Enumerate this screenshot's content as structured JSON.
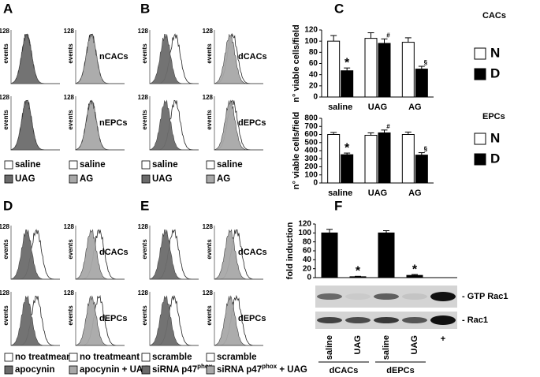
{
  "histogram_panels": [
    {
      "letter": "A",
      "ymax_label": "128",
      "ylabel": "events",
      "row_labels": [
        "nCACs",
        "nEPCs"
      ],
      "legend": [
        [
          {
            "text": "saline",
            "color": "#ffffff"
          },
          {
            "text": "UAG",
            "color": "#6b6b6b"
          }
        ],
        [
          {
            "text": "saline",
            "color": "#ffffff"
          },
          {
            "text": "AG",
            "color": "#a8a8a8"
          }
        ]
      ]
    },
    {
      "letter": "B",
      "ymax_label": "128",
      "ylabel": "events",
      "row_labels": [
        "dCACs",
        "dEPCs"
      ],
      "legend": [
        [
          {
            "text": "saline",
            "color": "#ffffff"
          },
          {
            "text": "UAG",
            "color": "#6b6b6b"
          }
        ],
        [
          {
            "text": "saline",
            "color": "#ffffff"
          },
          {
            "text": "AG",
            "color": "#a8a8a8"
          }
        ]
      ]
    },
    {
      "letter": "D",
      "ymax_label": "128",
      "ylabel": "events",
      "row_labels": [
        "dCACs",
        "dEPCs"
      ],
      "legend": [
        [
          {
            "text": "no treatmeant",
            "color": "#ffffff"
          },
          {
            "text": "apocynin",
            "color": "#6b6b6b"
          }
        ],
        [
          {
            "text": "no treatmeant",
            "color": "#ffffff"
          },
          {
            "text": "apocynin + UAG",
            "color": "#a8a8a8"
          }
        ]
      ]
    },
    {
      "letter": "E",
      "ymax_label": "128",
      "ylabel": "events",
      "row_labels": [
        "dCACs",
        "dEPCs"
      ],
      "legend": [
        [
          {
            "text": "scramble",
            "color": "#ffffff"
          },
          {
            "text": "siRNA p47",
            "sup": "phox",
            "color": "#6b6b6b"
          }
        ],
        [
          {
            "text": "scramble",
            "color": "#ffffff"
          },
          {
            "text": "siRNA p47",
            "sup": "phox",
            "suffix": " + UAG",
            "color": "#a8a8a8"
          }
        ]
      ]
    }
  ],
  "chart_data": [
    {
      "type": "bar",
      "panel": "C",
      "title": "CACs",
      "ylabel": "n° viable cells/field",
      "categories": [
        "saline",
        "UAG",
        "AG"
      ],
      "series": [
        {
          "name": "N",
          "color": "#ffffff",
          "values": [
            100,
            105,
            98
          ],
          "errors": [
            10,
            10,
            8
          ]
        },
        {
          "name": "D",
          "color": "#000000",
          "values": [
            47,
            96,
            50
          ],
          "errors": [
            5,
            8,
            5
          ],
          "annotations": [
            "*",
            "#",
            "§"
          ]
        }
      ],
      "ylim": [
        0,
        120
      ],
      "yticks": [
        0,
        20,
        40,
        60,
        80,
        100,
        120
      ]
    },
    {
      "type": "bar",
      "title": "EPCs",
      "ylabel": "n° viable cells/field",
      "categories": [
        "saline",
        "UAG",
        "AG"
      ],
      "series": [
        {
          "name": "N",
          "color": "#ffffff",
          "values": [
            600,
            590,
            600
          ],
          "errors": [
            25,
            30,
            30
          ]
        },
        {
          "name": "D",
          "color": "#000000",
          "values": [
            350,
            620,
            345
          ],
          "errors": [
            20,
            35,
            30
          ],
          "annotations": [
            "*",
            "#",
            "§"
          ]
        }
      ],
      "ylim": [
        0,
        800
      ],
      "yticks": [
        0,
        100,
        200,
        300,
        400,
        500,
        600,
        700,
        800
      ]
    },
    {
      "type": "bar",
      "panel": "F",
      "ylabel": "fold induction",
      "categories": [
        "saline",
        "UAG",
        "saline",
        "UAG",
        "+"
      ],
      "series": [
        {
          "color": "#000000",
          "values": [
            100,
            2,
            100,
            5,
            null
          ],
          "errors": [
            8,
            1,
            5,
            2,
            null
          ],
          "annotations": [
            null,
            "*",
            null,
            "*",
            null
          ]
        }
      ],
      "ylim": [
        0,
        120
      ],
      "yticks": [
        0,
        20,
        40,
        60,
        80,
        100,
        120
      ],
      "blot_bands": [
        "- GTP Rac1",
        "- Rac1"
      ],
      "groups": [
        "dCACs",
        "dEPCs"
      ]
    }
  ]
}
